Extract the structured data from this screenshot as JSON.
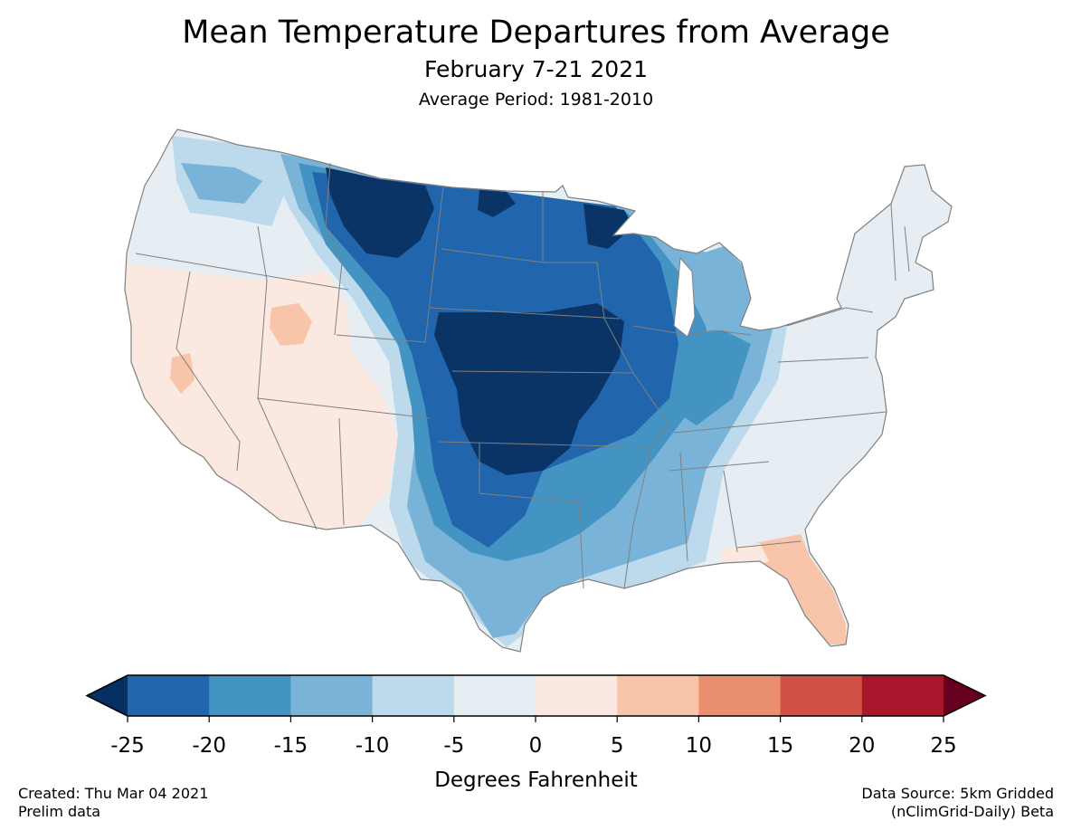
{
  "title": "Mean Temperature Departures from Average",
  "subtitle": "February 7-21 2021",
  "average_period": "Average Period: 1981-2010",
  "colorbar": {
    "label": "Degrees Fahrenheit",
    "ticks": [
      "-25",
      "-20",
      "-15",
      "-10",
      "-5",
      "0",
      "5",
      "10",
      "15",
      "20",
      "25"
    ],
    "under_color": "#053061",
    "over_color": "#67001f",
    "bins": [
      {
        "from": -25,
        "to": -20,
        "color": "#2166ac"
      },
      {
        "from": -20,
        "to": -15,
        "color": "#4393c3"
      },
      {
        "from": -15,
        "to": -10,
        "color": "#7ab3d8"
      },
      {
        "from": -10,
        "to": -5,
        "color": "#bcdaeb"
      },
      {
        "from": -5,
        "to": 0,
        "color": "#e6eef4"
      },
      {
        "from": 0,
        "to": 5,
        "color": "#fae8e1"
      },
      {
        "from": 5,
        "to": 10,
        "color": "#f8c4aa"
      },
      {
        "from": 10,
        "to": 15,
        "color": "#ea9070"
      },
      {
        "from": 15,
        "to": 20,
        "color": "#d05246"
      },
      {
        "from": 20,
        "to": 25,
        "color": "#a8162b"
      }
    ]
  },
  "footer": {
    "created": "Created: Thu Mar 04 2021",
    "prelim": "Prelim data",
    "source_line1": "Data Source: 5km Gridded",
    "source_line2": "(nClimGrid-Daily) Beta"
  },
  "map": {
    "region": "Contiguous United States",
    "palette": {
      "lt_m25": "#0b3466",
      "m25_m20": "#2166ac",
      "m20_m15": "#4393c3",
      "m15_m10": "#7ab3d8",
      "m10_m5": "#bcdaeb",
      "m5_0": "#e6eef4",
      "p0_p5": "#fae8e1",
      "p5_p10": "#f8c4aa",
      "border": "#808080"
    }
  }
}
